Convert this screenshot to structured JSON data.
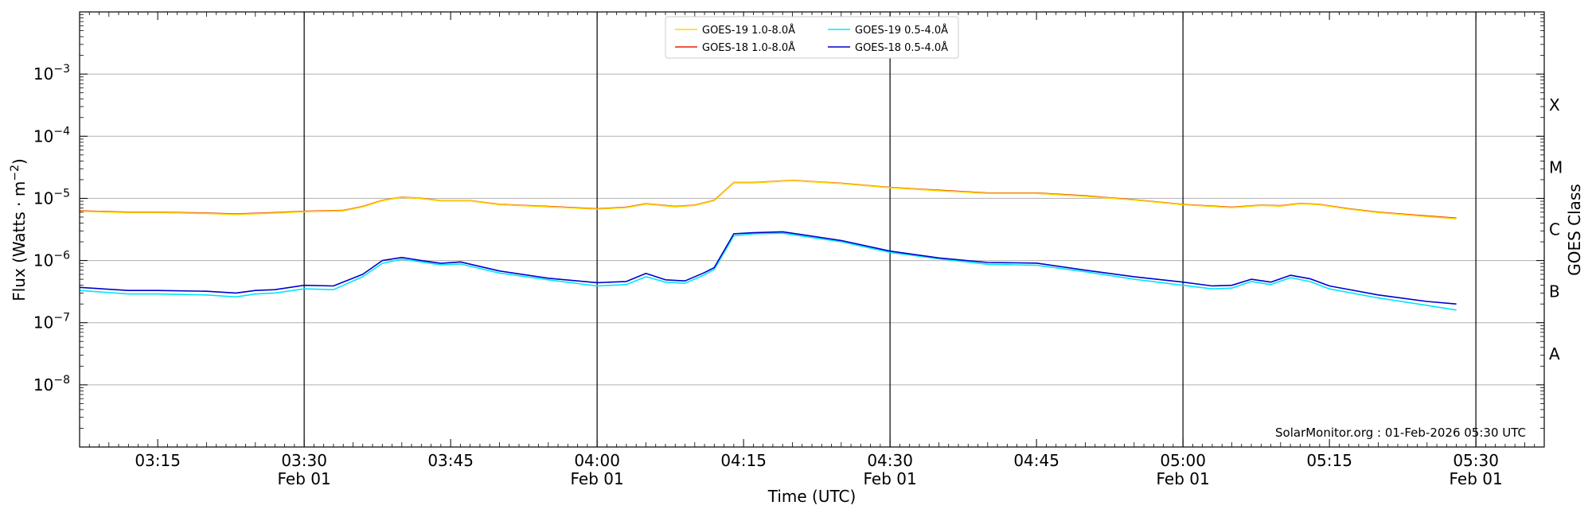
{
  "chart_data": {
    "type": "line",
    "xlabel": "Time (UTC)",
    "ylabel": "Flux (Watts · m",
    "ylabel_sup": "−2",
    "ylabel_close": ")",
    "y2label": "GOES Class",
    "y_scale": "log",
    "ylim": [
      1e-09,
      0.01
    ],
    "x_range": [
      "03:07",
      "05:37"
    ],
    "grid": "horizontal",
    "legend_position": "top-center",
    "footer": "SolarMonitor.org : 01-Feb-2026 05:30 UTC",
    "y_ticks": [
      {
        "exp": -8,
        "base": "10",
        "sup": "−8"
      },
      {
        "exp": -7,
        "base": "10",
        "sup": "−7"
      },
      {
        "exp": -6,
        "base": "10",
        "sup": "−6"
      },
      {
        "exp": -5,
        "base": "10",
        "sup": "−5"
      },
      {
        "exp": -4,
        "base": "10",
        "sup": "−4"
      },
      {
        "exp": -3,
        "base": "10",
        "sup": "−3"
      }
    ],
    "goes_classes": [
      {
        "label": "A",
        "exp": -7.5
      },
      {
        "label": "B",
        "exp": -6.5
      },
      {
        "label": "C",
        "exp": -5.5
      },
      {
        "label": "M",
        "exp": -4.5
      },
      {
        "label": "X",
        "exp": -3.5
      }
    ],
    "x_ticks": [
      {
        "time": "03:15",
        "label": "03:15",
        "date": ""
      },
      {
        "time": "03:30",
        "label": "03:30",
        "date": "Feb 01"
      },
      {
        "time": "03:45",
        "label": "03:45",
        "date": ""
      },
      {
        "time": "04:00",
        "label": "04:00",
        "date": "Feb 01"
      },
      {
        "time": "04:15",
        "label": "04:15",
        "date": ""
      },
      {
        "time": "04:30",
        "label": "04:30",
        "date": "Feb 01"
      },
      {
        "time": "04:45",
        "label": "04:45",
        "date": ""
      },
      {
        "time": "05:00",
        "label": "05:00",
        "date": "Feb 01"
      },
      {
        "time": "05:15",
        "label": "05:15",
        "date": ""
      },
      {
        "time": "05:30",
        "label": "05:30",
        "date": "Feb 01"
      }
    ],
    "vlines": [
      "03:30",
      "04:00",
      "04:30",
      "05:00",
      "05:30"
    ],
    "legend": [
      {
        "name": "GOES-19 1.0-8.0Å",
        "color": "#ffd700"
      },
      {
        "name": "GOES-19 0.5-4.0Å",
        "color": "#00e5ff"
      },
      {
        "name": "GOES-18 1.0-8.0Å",
        "color": "#e32400"
      },
      {
        "name": "GOES-18 0.5-4.0Å",
        "color": "#0000cc"
      }
    ],
    "series": [
      {
        "name": "GOES-18 1.0-8.0Å",
        "color": "#e32400",
        "x": [
          "03:07",
          "03:12",
          "03:15",
          "03:20",
          "03:23",
          "03:27",
          "03:30",
          "03:34",
          "03:36",
          "03:38",
          "03:40",
          "03:42",
          "03:44",
          "03:47",
          "03:50",
          "03:55",
          "04:00",
          "04:03",
          "04:05",
          "04:08",
          "04:10",
          "04:12",
          "04:14",
          "04:16",
          "04:20",
          "04:25",
          "04:30",
          "04:35",
          "04:40",
          "04:45",
          "04:50",
          "04:55",
          "05:00",
          "05:05",
          "05:08",
          "05:10",
          "05:12",
          "05:14",
          "05:17",
          "05:20",
          "05:25",
          "05:28"
        ],
        "y": [
          6.3e-06,
          6e-06,
          6e-06,
          5.8e-06,
          5.6e-06,
          5.9e-06,
          6.2e-06,
          6.4e-06,
          7.4e-06,
          9.3e-06,
          1.05e-05,
          1e-05,
          9.2e-06,
          9.2e-06,
          8e-06,
          7.4e-06,
          6.8e-06,
          7.2e-06,
          8.2e-06,
          7.4e-06,
          7.8e-06,
          9.3e-06,
          1.8e-05,
          1.8e-05,
          1.95e-05,
          1.75e-05,
          1.5e-05,
          1.35e-05,
          1.22e-05,
          1.22e-05,
          1.1e-05,
          9.5e-06,
          8e-06,
          7.2e-06,
          7.8e-06,
          7.6e-06,
          8.3e-06,
          8e-06,
          6.8e-06,
          6e-06,
          5.2e-06,
          4.8e-06
        ]
      },
      {
        "name": "GOES-19 1.0-8.0Å",
        "color": "#ffd700",
        "x": [
          "03:07",
          "03:12",
          "03:15",
          "03:20",
          "03:23",
          "03:27",
          "03:30",
          "03:34",
          "03:36",
          "03:38",
          "03:40",
          "03:42",
          "03:44",
          "03:47",
          "03:50",
          "03:55",
          "04:00",
          "04:03",
          "04:05",
          "04:08",
          "04:10",
          "04:12",
          "04:14",
          "04:16",
          "04:20",
          "04:25",
          "04:30",
          "04:35",
          "04:40",
          "04:45",
          "04:50",
          "04:55",
          "05:00",
          "05:05",
          "05:08",
          "05:10",
          "05:12",
          "05:14",
          "05:17",
          "05:20",
          "05:25",
          "05:28"
        ],
        "y": [
          6.2e-06,
          5.9e-06,
          5.9e-06,
          5.7e-06,
          5.5e-06,
          5.8e-06,
          6.1e-06,
          6.3e-06,
          7.3e-06,
          9.2e-06,
          1.04e-05,
          9.9e-06,
          9.1e-06,
          9.1e-06,
          7.9e-06,
          7.3e-06,
          6.7e-06,
          7.1e-06,
          8.1e-06,
          7.3e-06,
          7.7e-06,
          9.2e-06,
          1.78e-05,
          1.78e-05,
          1.93e-05,
          1.73e-05,
          1.48e-05,
          1.33e-05,
          1.2e-05,
          1.2e-05,
          1.08e-05,
          9.4e-06,
          7.9e-06,
          7.1e-06,
          7.7e-06,
          7.5e-06,
          8.2e-06,
          7.9e-06,
          6.7e-06,
          5.9e-06,
          5.1e-06,
          4.7e-06
        ]
      },
      {
        "name": "GOES-19 0.5-4.0Å",
        "color": "#00e5ff",
        "x": [
          "03:07",
          "03:12",
          "03:15",
          "03:20",
          "03:23",
          "03:25",
          "03:27",
          "03:30",
          "03:33",
          "03:36",
          "03:38",
          "03:40",
          "03:42",
          "03:44",
          "03:46",
          "03:50",
          "03:55",
          "04:00",
          "04:03",
          "04:05",
          "04:07",
          "04:09",
          "04:11",
          "04:12",
          "04:14",
          "04:16",
          "04:19",
          "04:25",
          "04:30",
          "04:35",
          "04:40",
          "04:45",
          "04:50",
          "04:55",
          "05:00",
          "05:03",
          "05:05",
          "05:07",
          "05:09",
          "05:11",
          "05:13",
          "05:15",
          "05:20",
          "05:25",
          "05:28"
        ],
        "y": [
          3.3e-07,
          2.9e-07,
          2.9e-07,
          2.8e-07,
          2.6e-07,
          2.9e-07,
          3e-07,
          3.5e-07,
          3.4e-07,
          5.5e-07,
          9e-07,
          1.05e-06,
          9.5e-07,
          8.5e-07,
          8.8e-07,
          6.3e-07,
          4.9e-07,
          3.9e-07,
          4.1e-07,
          5.5e-07,
          4.5e-07,
          4.3e-07,
          5.9e-07,
          7.2e-07,
          2.5e-06,
          2.7e-06,
          2.75e-06,
          2e-06,
          1.35e-06,
          1.07e-06,
          8.7e-07,
          8.4e-07,
          6.6e-07,
          5e-07,
          4e-07,
          3.5e-07,
          3.6e-07,
          4.6e-07,
          4.1e-07,
          5.3e-07,
          4.6e-07,
          3.5e-07,
          2.5e-07,
          1.9e-07,
          1.6e-07
        ]
      },
      {
        "name": "GOES-18 0.5-4.0Å",
        "color": "#0000cc",
        "x": [
          "03:07",
          "03:12",
          "03:15",
          "03:20",
          "03:23",
          "03:25",
          "03:27",
          "03:30",
          "03:33",
          "03:36",
          "03:38",
          "03:40",
          "03:42",
          "03:44",
          "03:46",
          "03:50",
          "03:55",
          "04:00",
          "04:03",
          "04:05",
          "04:07",
          "04:09",
          "04:11",
          "04:12",
          "04:14",
          "04:16",
          "04:19",
          "04:25",
          "04:30",
          "04:35",
          "04:40",
          "04:45",
          "04:50",
          "04:55",
          "05:00",
          "05:03",
          "05:05",
          "05:07",
          "05:09",
          "05:11",
          "05:13",
          "05:15",
          "05:20",
          "05:25",
          "05:28"
        ],
        "y": [
          3.7e-07,
          3.3e-07,
          3.3e-07,
          3.2e-07,
          3e-07,
          3.3e-07,
          3.4e-07,
          4e-07,
          3.9e-07,
          6e-07,
          1e-06,
          1.12e-06,
          1e-06,
          9e-07,
          9.5e-07,
          6.8e-07,
          5.2e-07,
          4.4e-07,
          4.6e-07,
          6.2e-07,
          4.9e-07,
          4.7e-07,
          6.4e-07,
          7.7e-07,
          2.7e-06,
          2.8e-06,
          2.9e-06,
          2.1e-06,
          1.42e-06,
          1.1e-06,
          9.3e-07,
          9.1e-07,
          7e-07,
          5.5e-07,
          4.5e-07,
          3.9e-07,
          4e-07,
          5e-07,
          4.5e-07,
          5.8e-07,
          5.1e-07,
          3.9e-07,
          2.8e-07,
          2.2e-07,
          2e-07
        ]
      }
    ]
  }
}
